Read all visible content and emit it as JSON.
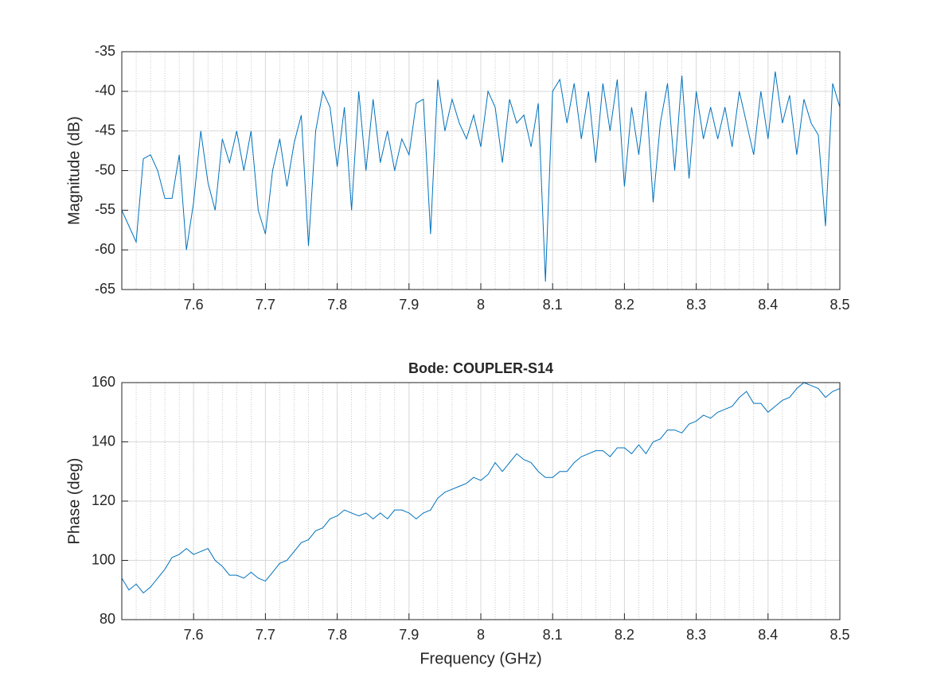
{
  "chart_data": [
    {
      "type": "line",
      "ylabel": "Magnitude (dB)",
      "x": [
        7.5,
        7.51,
        7.52,
        7.53,
        7.54,
        7.55,
        7.56,
        7.57,
        7.58,
        7.59,
        7.6,
        7.61,
        7.62,
        7.63,
        7.64,
        7.65,
        7.66,
        7.67,
        7.68,
        7.69,
        7.7,
        7.71,
        7.72,
        7.73,
        7.74,
        7.75,
        7.76,
        7.77,
        7.78,
        7.79,
        7.8,
        7.81,
        7.82,
        7.83,
        7.84,
        7.85,
        7.86,
        7.87,
        7.88,
        7.89,
        7.9,
        7.91,
        7.92,
        7.93,
        7.94,
        7.95,
        7.96,
        7.97,
        7.98,
        7.99,
        8,
        8.01,
        8.02,
        8.03,
        8.04,
        8.05,
        8.06,
        8.07,
        8.08,
        8.09,
        8.1,
        8.11,
        8.12,
        8.13,
        8.14,
        8.15,
        8.16,
        8.17,
        8.18,
        8.19,
        8.2,
        8.21,
        8.22,
        8.23,
        8.24,
        8.25,
        8.26,
        8.27,
        8.28,
        8.29,
        8.3,
        8.31,
        8.32,
        8.33,
        8.34,
        8.35,
        8.36,
        8.37,
        8.38,
        8.39,
        8.4,
        8.41,
        8.42,
        8.43,
        8.44,
        8.45,
        8.46,
        8.47,
        8.48,
        8.49,
        8.5
      ],
      "values": [
        -55,
        -57,
        -59,
        -48.5,
        -48,
        -50,
        -53.5,
        -53.5,
        -48,
        -60,
        -54,
        -45,
        -51.5,
        -55,
        -46,
        -49,
        -45,
        -50,
        -45,
        -55,
        -58,
        -50,
        -46,
        -52,
        -46.5,
        -43,
        -59.5,
        -45,
        -40,
        -42,
        -49.5,
        -42,
        -55,
        -40,
        -50,
        -41,
        -49,
        -45,
        -50,
        -46,
        -48,
        -41.5,
        -41,
        -58,
        -38.5,
        -45,
        -41,
        -44,
        -46,
        -43,
        -47,
        -40,
        -42,
        -49,
        -41,
        -44,
        -43,
        -47,
        -41.5,
        -64,
        -40,
        -38.5,
        -44,
        -39,
        -46,
        -40,
        -49,
        -39,
        -45,
        -38.5,
        -52,
        -42,
        -48,
        -40,
        -54,
        -44,
        -39,
        -50,
        -38,
        -51,
        -40,
        -46,
        -42,
        -46,
        -42,
        -47,
        -40,
        -44,
        -48,
        -40,
        -46,
        -37.5,
        -44,
        -40.5,
        -48,
        -41,
        -44,
        -45.5,
        -57,
        -39,
        -42
      ],
      "color": "#0072bd",
      "xlim": [
        7.5,
        8.5
      ],
      "xticks": [
        7.6,
        7.7,
        7.8,
        7.9,
        8,
        8.1,
        8.2,
        8.3,
        8.4,
        8.5
      ],
      "ylim": [
        -65,
        -35
      ],
      "yticks": [
        -65,
        -60,
        -55,
        -50,
        -45,
        -40,
        -35
      ],
      "grid": true,
      "minor_grid": true
    },
    {
      "type": "line",
      "title": "Bode: COUPLER-S14",
      "xlabel": "Frequency (GHz)",
      "ylabel": "Phase (deg)",
      "x": [
        7.5,
        7.51,
        7.52,
        7.53,
        7.54,
        7.55,
        7.56,
        7.57,
        7.58,
        7.59,
        7.6,
        7.61,
        7.62,
        7.63,
        7.64,
        7.65,
        7.66,
        7.67,
        7.68,
        7.69,
        7.7,
        7.71,
        7.72,
        7.73,
        7.74,
        7.75,
        7.76,
        7.77,
        7.78,
        7.79,
        7.8,
        7.81,
        7.82,
        7.83,
        7.84,
        7.85,
        7.86,
        7.87,
        7.88,
        7.89,
        7.9,
        7.91,
        7.92,
        7.93,
        7.94,
        7.95,
        7.96,
        7.97,
        7.98,
        7.99,
        8,
        8.01,
        8.02,
        8.03,
        8.04,
        8.05,
        8.06,
        8.07,
        8.08,
        8.09,
        8.1,
        8.11,
        8.12,
        8.13,
        8.14,
        8.15,
        8.16,
        8.17,
        8.18,
        8.19,
        8.2,
        8.21,
        8.22,
        8.23,
        8.24,
        8.25,
        8.26,
        8.27,
        8.28,
        8.29,
        8.3,
        8.31,
        8.32,
        8.33,
        8.34,
        8.35,
        8.36,
        8.37,
        8.38,
        8.39,
        8.4,
        8.41,
        8.42,
        8.43,
        8.44,
        8.45,
        8.46,
        8.47,
        8.48,
        8.49,
        8.5
      ],
      "values": [
        94,
        90,
        92,
        89,
        91,
        94,
        97,
        101,
        102,
        104,
        102,
        103,
        104,
        100,
        98,
        95,
        95,
        94,
        96,
        94,
        93,
        96,
        99,
        100,
        103,
        106,
        107,
        110,
        111,
        114,
        115,
        117,
        116,
        115,
        116,
        114,
        116,
        114,
        117,
        117,
        116,
        114,
        116,
        117,
        121,
        123,
        124,
        125,
        126,
        128,
        127,
        129,
        133,
        130,
        133,
        136,
        134,
        133,
        130,
        128,
        128,
        130,
        130,
        133,
        135,
        136,
        137,
        137,
        135,
        138,
        138,
        136,
        139,
        136,
        140,
        141,
        144,
        144,
        143,
        146,
        147,
        149,
        148,
        150,
        151,
        152,
        155,
        157,
        153,
        153,
        150,
        152,
        154,
        155,
        158,
        160,
        159,
        158,
        155,
        157,
        158
      ],
      "color": "#0072bd",
      "xlim": [
        7.5,
        8.5
      ],
      "xticks": [
        7.6,
        7.7,
        7.8,
        7.9,
        8,
        8.1,
        8.2,
        8.3,
        8.4,
        8.5
      ],
      "ylim": [
        80,
        160
      ],
      "yticks": [
        80,
        100,
        120,
        140,
        160
      ],
      "grid": true,
      "minor_grid": true
    }
  ]
}
